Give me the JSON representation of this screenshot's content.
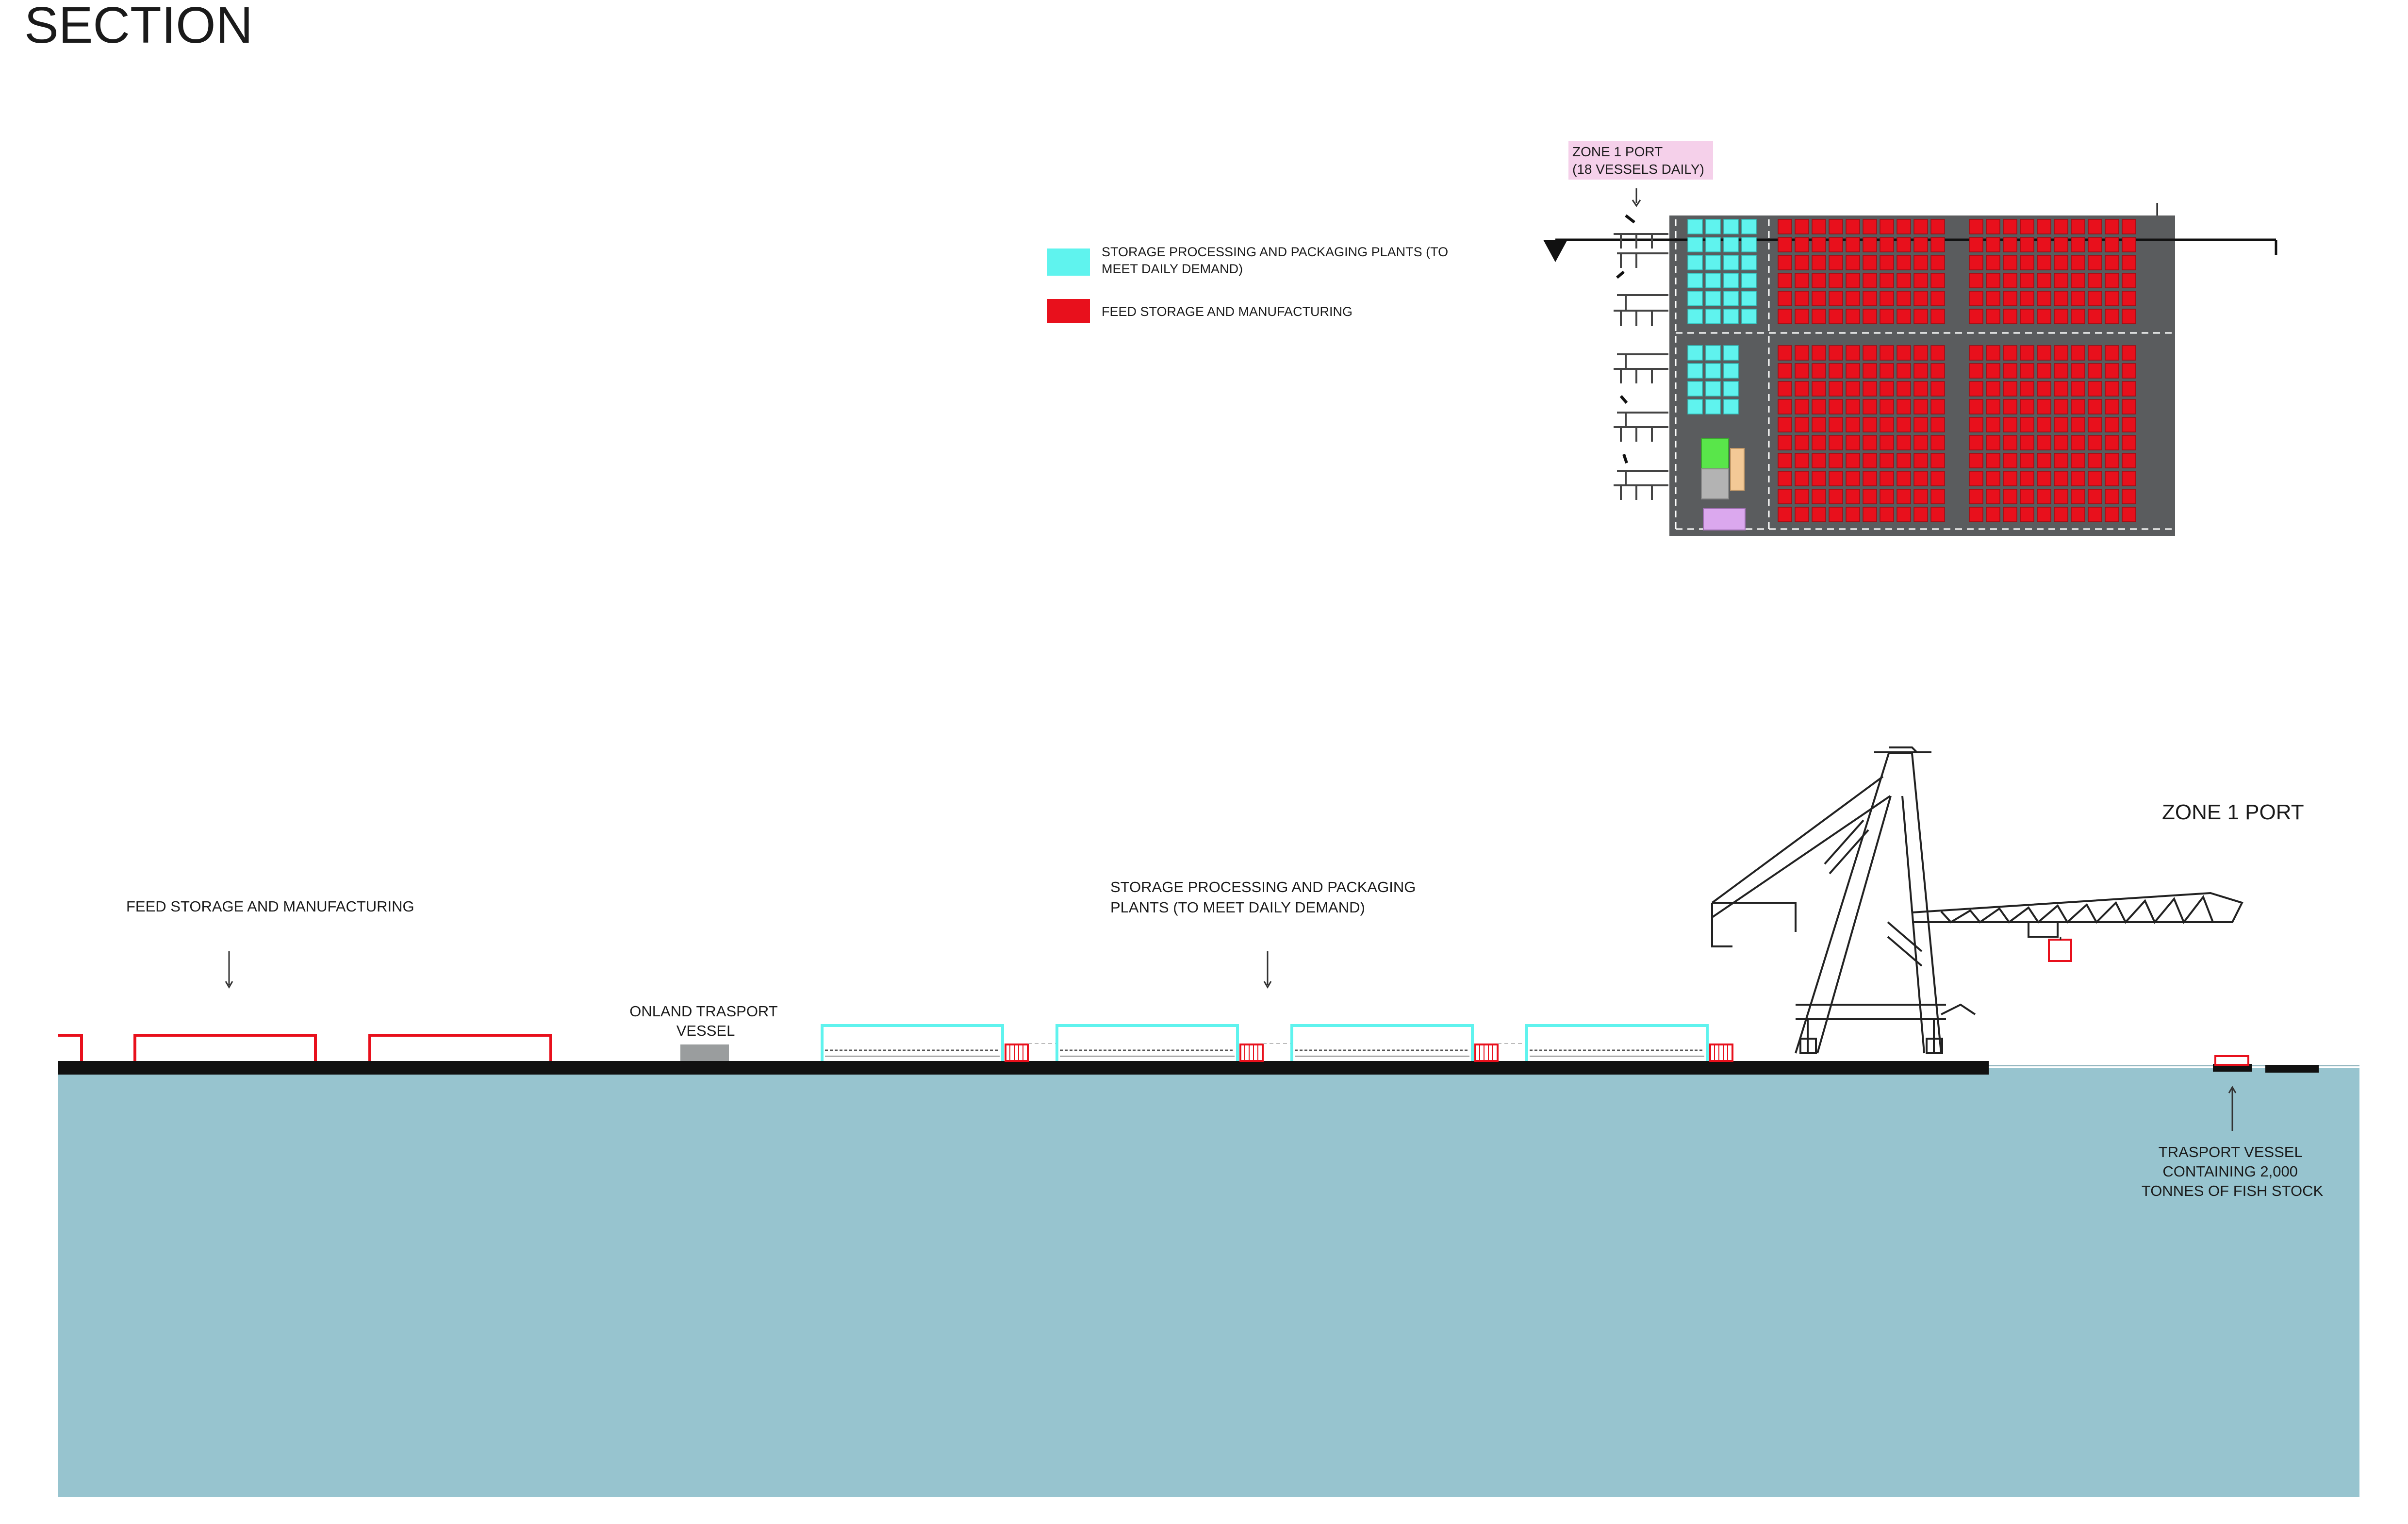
{
  "page_title": "SECTION",
  "legend": {
    "items": [
      {
        "color": "#5ff3ee",
        "lines": [
          "STORAGE PROCESSING AND PACKAGING PLANTS (TO",
          "MEET DAILY DEMAND)"
        ]
      },
      {
        "color": "#e8101c",
        "lines": [
          "FEED STORAGE AND MANUFACTURING"
        ]
      }
    ]
  },
  "plan": {
    "zone_label_lines": [
      "ZONE 1 PORT",
      "(18 VESSELS DAILY)"
    ],
    "zone_label_bg": "#f5d0ea",
    "ground_color": "#5a5c5e",
    "processing_color": "#5ff3ee",
    "feed_color": "#e8101c",
    "misc_colors": {
      "green": "#59e64a",
      "gray": "#b3b3b3",
      "tan": "#f3c996",
      "lavender": "#dba8ee"
    }
  },
  "section": {
    "zone_title": "ZONE 1 PORT",
    "feed_label": "FEED STORAGE AND MANUFACTURING",
    "processing_label_lines": [
      "STORAGE PROCESSING AND PACKAGING",
      "PLANTS (TO MEET DAILY DEMAND)"
    ],
    "onland_label_lines": [
      "ONLAND TRASPORT",
      "VESSEL"
    ],
    "vessel_label_lines": [
      "TRASPORT VESSEL",
      "CONTAINING 2,000",
      "TONNES OF FISH STOCK"
    ],
    "water_color": "#97c4cf",
    "ground_color": "#111111",
    "feed_outline_color": "#e8101c",
    "processing_outline_color": "#5ff3ee",
    "container_color": "#e8101c"
  }
}
